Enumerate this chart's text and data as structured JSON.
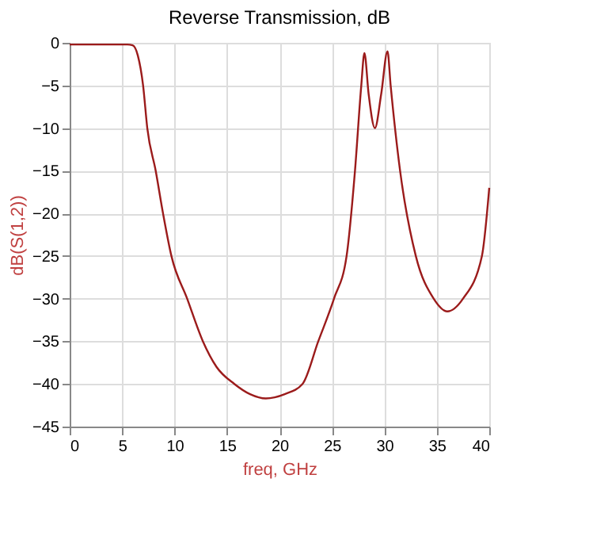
{
  "chart_data": {
    "type": "line",
    "title": "Reverse Transmission, dB",
    "xlabel": "freq, GHz",
    "ylabel": "dB(S(1,2))",
    "series": [
      {
        "color": "#9b1b1b",
        "x": [
          0,
          2,
          4,
          5.5,
          6.0,
          6.5,
          7.0,
          7.4,
          8.2,
          8.9,
          9.7,
          11.2,
          12.7,
          14.0,
          15.7,
          17.2,
          18.7,
          20.5,
          22.2,
          23.7,
          25.2,
          26.4,
          27.2,
          27.8,
          28.1,
          28.5,
          29.1,
          29.7,
          30.3,
          30.6,
          31.5,
          33.0,
          34.7,
          36.0,
          37.5,
          39.3,
          40
        ],
        "values": [
          -0.2,
          -0.2,
          -0.2,
          -0.2,
          -0.3,
          -1.5,
          -5,
          -10,
          -15,
          -20,
          -25,
          -30,
          -35,
          -38,
          -40,
          -41.2,
          -41.7,
          -41.2,
          -40,
          -35,
          -30,
          -25,
          -15,
          -5,
          -1.2,
          -6,
          -10,
          -6,
          -1,
          -5,
          -15,
          -25,
          -30,
          -31.5,
          -30,
          -25,
          -17
        ]
      }
    ],
    "xlim": [
      0,
      40
    ],
    "xticks": [
      0,
      5,
      10,
      15,
      20,
      25,
      30,
      35,
      40
    ],
    "ylim": [
      -45,
      0
    ],
    "yticks": [
      -45,
      -40,
      -35,
      -30,
      -25,
      -20,
      -15,
      -10,
      -5,
      0
    ],
    "grid": true,
    "marker": "none",
    "line_style": "solid"
  }
}
